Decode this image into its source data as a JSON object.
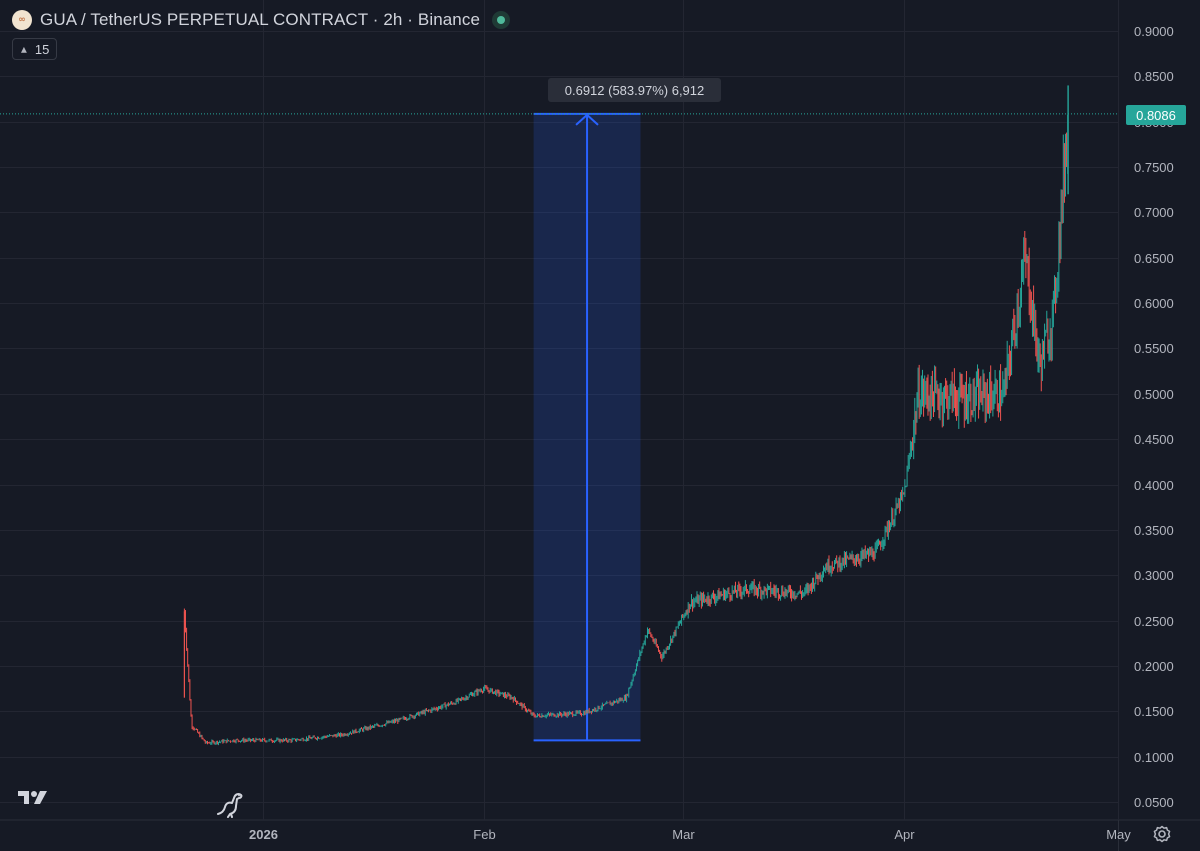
{
  "header": {
    "title": "GUA / TetherUS PERPETUAL CONTRACT · 2h · Binance",
    "coin_icon": "gua-coin-icon",
    "live_icon": "market-open-dot-icon"
  },
  "indicator": {
    "label": "15",
    "icon": "chevron-up-icon"
  },
  "measure": {
    "label": "0.6912 (583.97%) 6,912"
  },
  "price_tag": {
    "label": "0.8086",
    "color": "#26a69a"
  },
  "colors": {
    "background": "#161a25",
    "grid": "#232632",
    "up": "#26a69a",
    "down": "#ef5350",
    "measure": "#2962ff"
  },
  "chart_data": {
    "type": "candlestick",
    "title": "GUA / TetherUS PERPETUAL CONTRACT · 2h · Binance",
    "x_ticks": [
      "2026",
      "Feb",
      "Mar",
      "Apr",
      "May"
    ],
    "y_ticks": [
      "0.0500",
      "0.1000",
      "0.1500",
      "0.2000",
      "0.2500",
      "0.3000",
      "0.3500",
      "0.4000",
      "0.4500",
      "0.5000",
      "0.5500",
      "0.6000",
      "0.6500",
      "0.7000",
      "0.7500",
      "0.8000",
      "0.8500",
      "0.9000"
    ],
    "ylim": [
      0.05,
      0.9
    ],
    "xlim": [
      "2025-12-18",
      "2026-05-01"
    ],
    "last_price": 0.8086,
    "grid": true,
    "price_path": [
      [
        "2025-12-21",
        0.26
      ],
      [
        "2025-12-22",
        0.135
      ],
      [
        "2025-12-24",
        0.115
      ],
      [
        "2025-12-28",
        0.118
      ],
      [
        "2026-01-05",
        0.118
      ],
      [
        "2026-01-12",
        0.124
      ],
      [
        "2026-01-20",
        0.14
      ],
      [
        "2026-01-28",
        0.16
      ],
      [
        "2026-02-01",
        0.175
      ],
      [
        "2026-02-05",
        0.165
      ],
      [
        "2026-02-08",
        0.145
      ],
      [
        "2026-02-15",
        0.148
      ],
      [
        "2026-02-21",
        0.165
      ],
      [
        "2026-02-24",
        0.24
      ],
      [
        "2026-02-26",
        0.21
      ],
      [
        "2026-03-02",
        0.27
      ],
      [
        "2026-03-10",
        0.285
      ],
      [
        "2026-03-18",
        0.28
      ],
      [
        "2026-03-21",
        0.31
      ],
      [
        "2026-03-28",
        0.325
      ],
      [
        "2026-04-01",
        0.39
      ],
      [
        "2026-04-03",
        0.5
      ],
      [
        "2026-04-10",
        0.495
      ],
      [
        "2026-04-15",
        0.5
      ],
      [
        "2026-04-18",
        0.65
      ],
      [
        "2026-04-20",
        0.53
      ],
      [
        "2026-04-22",
        0.59
      ],
      [
        "2026-04-23",
        0.7
      ],
      [
        "2026-04-24",
        0.8086
      ]
    ],
    "measure_range": {
      "from_date": "2026-02-08",
      "to_date": "2026-02-23",
      "low": 0.118,
      "high": 0.8086
    }
  }
}
